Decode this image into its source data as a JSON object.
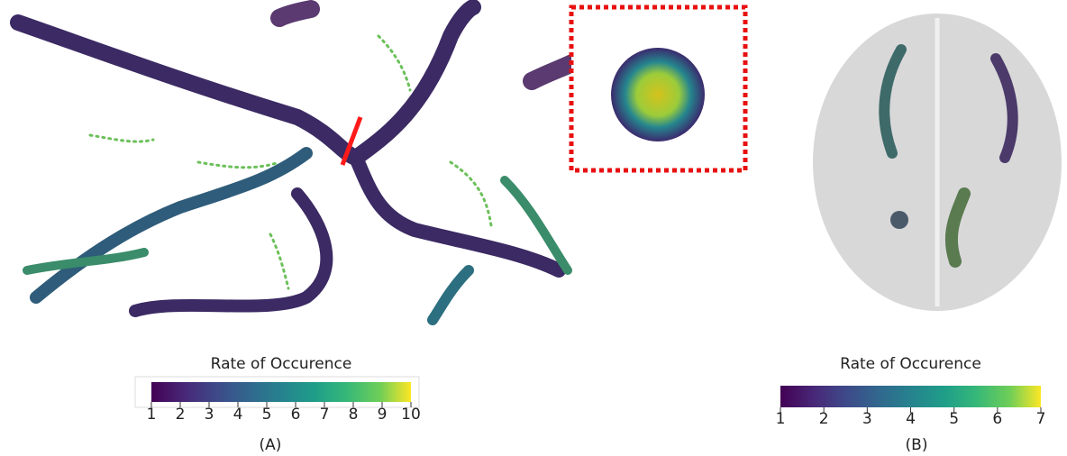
{
  "panels": [
    {
      "colorbar": {
        "title": "Rate of Occurence",
        "lim": [
          1,
          10
        ],
        "ticks": [
          1,
          2,
          3,
          4,
          5,
          6,
          7,
          8,
          9,
          10
        ]
      },
      "caption": "(A)"
    },
    {
      "colorbar": {
        "title": "Rate of Occurence",
        "lim": [
          1,
          7
        ],
        "ticks": [
          1,
          2,
          3,
          4,
          5,
          6,
          7
        ]
      },
      "caption": "(B)"
    }
  ]
}
